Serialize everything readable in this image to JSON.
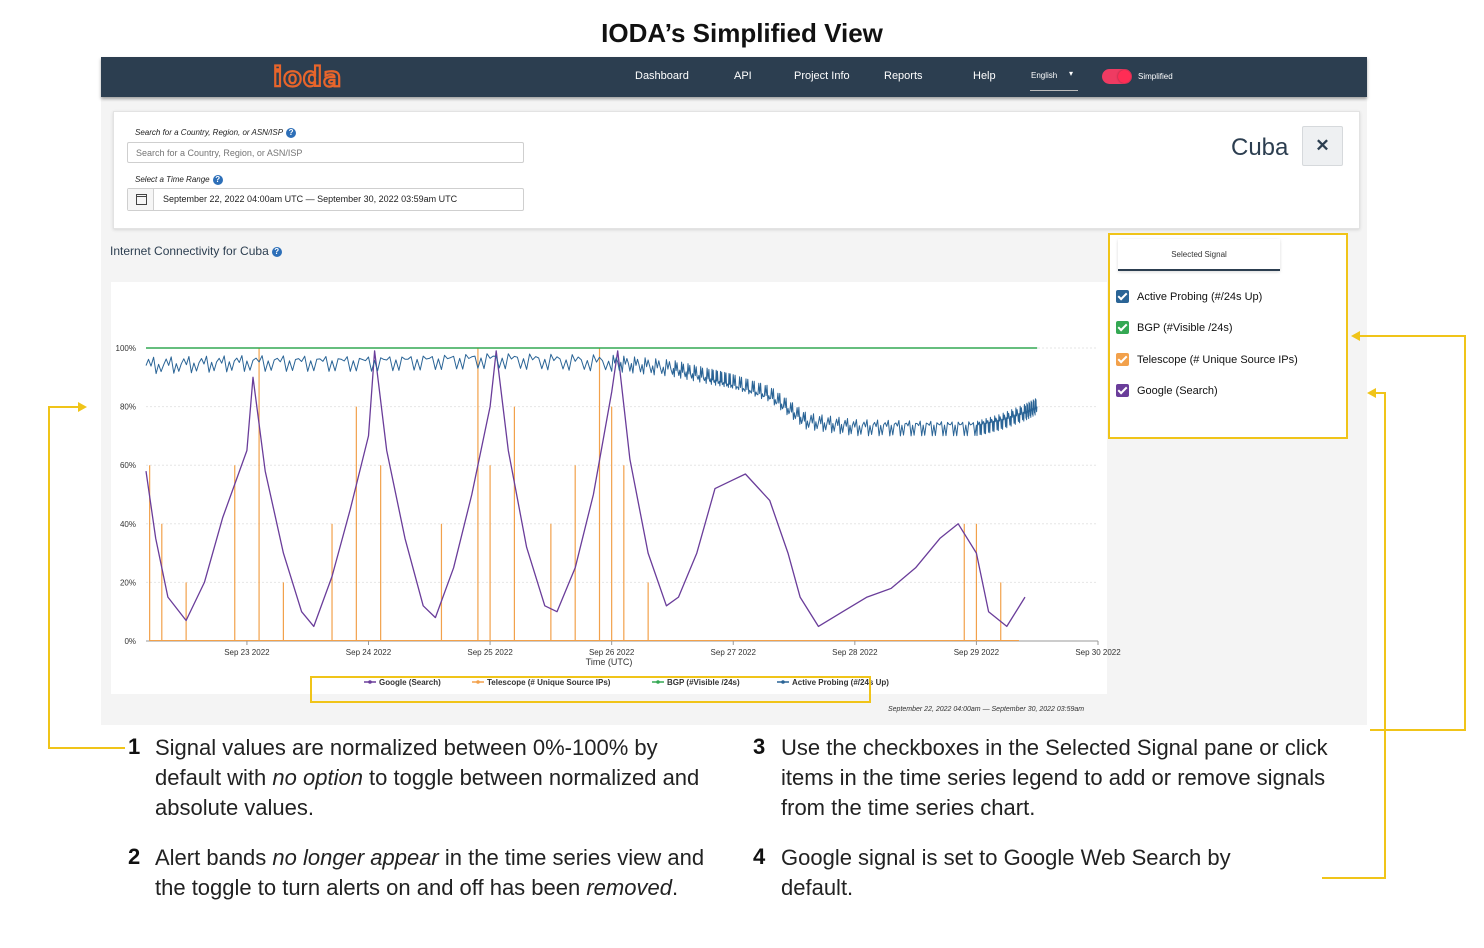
{
  "page_title": "IODA’s Simplified View",
  "navbar": {
    "logo": "ioda",
    "items": [
      "Dashboard",
      "API",
      "Project Info",
      "Reports",
      "Help"
    ],
    "language": "English",
    "mode_label": "Simplified",
    "colors": {
      "bg": "#2c3e50",
      "toggle": "#ef3b62",
      "logo": "#e8652b"
    }
  },
  "search": {
    "label": "Search for a Country, Region, or ASN/ISP",
    "placeholder": "Search for a Country, Region, or ASN/ISP",
    "time_label": "Select a Time Range",
    "time_value": "September 22, 2022 04:00am UTC — September 30, 2022 03:59am UTC",
    "calendar_icon": "calendar-icon",
    "help_icon": "help-icon"
  },
  "entity": {
    "name": "Cuba",
    "close_symbol": "✕"
  },
  "connectivity": {
    "title": "Internet Connectivity for Cuba"
  },
  "signal_pane": {
    "tab": "Selected Signal",
    "signals": [
      {
        "label": "Active Probing (#/24s Up)",
        "color": "#2a6496",
        "checked": true
      },
      {
        "label": "BGP (#Visible /24s)",
        "color": "#34a853",
        "checked": true
      },
      {
        "label": "Telescope (# Unique Source IPs)",
        "color": "#f2a14b",
        "checked": true
      },
      {
        "label": "Google (Search)",
        "color": "#6a3d9a",
        "checked": true
      }
    ]
  },
  "chart_data": {
    "type": "line",
    "xlabel": "Time (UTC)",
    "ylabel": "",
    "x_ticks": [
      "Sep 23 2022",
      "Sep 24 2022",
      "Sep 25 2022",
      "Sep 26 2022",
      "Sep 27 2022",
      "Sep 28 2022",
      "Sep 29 2022",
      "Sep 30 2022"
    ],
    "y_ticks": [
      "0%",
      "20%",
      "40%",
      "60%",
      "80%",
      "100%"
    ],
    "ylim": [
      0,
      100
    ],
    "x_unit": "days since Sep 22 2022 00:00 UTC",
    "xlim": [
      0.17,
      8.0
    ],
    "legend": [
      {
        "name": "Google (Search)",
        "color": "#6a3d9a"
      },
      {
        "name": "Telescope (# Unique Source IPs)",
        "color": "#f2a14b"
      },
      {
        "name": "BGP (#Visible /24s)",
        "color": "#34a853"
      },
      {
        "name": "Active Probing (#/24s Up)",
        "color": "#2a6496"
      }
    ],
    "legend_position": "bottom-center",
    "series": [
      {
        "name": "BGP (#Visible /24s)",
        "color": "#34a853",
        "x": [
          0.17,
          7.5
        ],
        "y": [
          100,
          100
        ]
      },
      {
        "name": "Active Probing (#/24s Up)",
        "color": "#2a6496",
        "x": [
          0.17,
          1.0,
          2.0,
          3.0,
          4.0,
          4.5,
          4.8,
          5.0,
          5.3,
          5.6,
          6.0,
          6.5,
          7.0,
          7.2,
          7.4,
          7.5
        ],
        "y": [
          94,
          95,
          95,
          96,
          95,
          93,
          90,
          88,
          84,
          75,
          73,
          73,
          73,
          75,
          78,
          80
        ]
      },
      {
        "name": "Google (Search)",
        "color": "#6a3d9a",
        "x": [
          0.17,
          0.25,
          0.35,
          0.5,
          0.65,
          0.8,
          1.0,
          1.05,
          1.15,
          1.3,
          1.45,
          1.55,
          1.7,
          1.85,
          2.0,
          2.05,
          2.15,
          2.3,
          2.45,
          2.55,
          2.7,
          2.85,
          3.0,
          3.05,
          3.15,
          3.3,
          3.45,
          3.55,
          3.7,
          3.85,
          4.0,
          4.05,
          4.15,
          4.3,
          4.45,
          4.55,
          4.7,
          4.85,
          5.0,
          5.1,
          5.3,
          5.45,
          5.55,
          5.7,
          5.9,
          6.1,
          6.3,
          6.5,
          6.7,
          6.85,
          7.0,
          7.1,
          7.25,
          7.4
        ],
        "y": [
          58,
          35,
          15,
          7,
          20,
          42,
          65,
          90,
          58,
          30,
          10,
          5,
          22,
          45,
          70,
          99,
          65,
          35,
          12,
          8,
          25,
          50,
          80,
          99,
          65,
          32,
          12,
          10,
          25,
          50,
          85,
          99,
          62,
          30,
          12,
          15,
          30,
          52,
          55,
          57,
          48,
          30,
          15,
          5,
          10,
          15,
          18,
          25,
          35,
          40,
          30,
          10,
          5,
          15
        ]
      },
      {
        "name": "Telescope (# Unique Source IPs)",
        "color": "#f2a14b",
        "x": [
          0.2,
          0.3,
          0.5,
          0.9,
          1.1,
          1.3,
          1.7,
          1.9,
          2.1,
          2.6,
          2.9,
          3.0,
          3.2,
          3.5,
          3.7,
          3.9,
          4.0,
          4.1,
          4.3,
          6.9,
          7.0,
          7.2
        ],
        "y": [
          60,
          40,
          20,
          60,
          100,
          20,
          40,
          80,
          60,
          40,
          100,
          60,
          80,
          40,
          60,
          100,
          80,
          60,
          20,
          40,
          40,
          20
        ]
      }
    ]
  },
  "time_range_caption": "September 22, 2022 04:00am — September 30, 2022 03:59am",
  "notes": {
    "n1": {
      "num": "1",
      "text_a": "Signal values are normalized between 0%-100% by default with ",
      "em": "no option",
      "text_b": " to toggle between normalized and absolute values."
    },
    "n2": {
      "num": "2",
      "text_a": "Alert bands ",
      "em": "no longer appear",
      "text_b": " in the time series view and the toggle to turn alerts on and off has been ",
      "em2": "removed",
      "text_c": "."
    },
    "n3": {
      "num": "3",
      "text": "Use the checkboxes in the Selected Signal pane or click items in the time series legend to add or remove signals from the time series chart."
    },
    "n4": {
      "num": "4",
      "text": "Google signal is set to Google Web Search by default."
    }
  },
  "annotation_color": "#f0c419"
}
